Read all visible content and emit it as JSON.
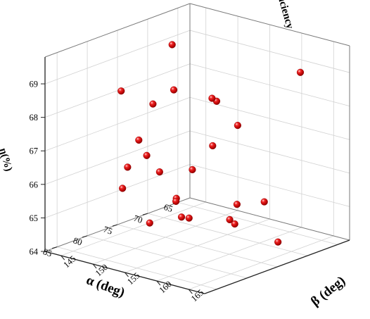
{
  "chart_data": {
    "type": "scatter",
    "dimensions": 3,
    "x_axis": {
      "label": "α (deg)",
      "ticks": [
        "65",
        "70",
        "75",
        "80",
        "85"
      ],
      "range": [
        63,
        87
      ]
    },
    "y_axis": {
      "label": "β (deg)",
      "ticks": [
        "145",
        "150",
        "155",
        "160",
        "165"
      ],
      "range": [
        142.5,
        167.5
      ]
    },
    "z_axis": {
      "label_line1": "Total pressure efficiency",
      "label_line2": "η(%)",
      "ticks": [
        "64",
        "65",
        "66",
        "67",
        "68",
        "69"
      ],
      "range": [
        64,
        69.8
      ]
    },
    "grid": true,
    "marker_color": "#e01010",
    "points": [
      {
        "x": 77.6,
        "y": 150.0,
        "z": 64.6
      },
      {
        "x": 72.9,
        "y": 163.5,
        "z": 65.6
      },
      {
        "x": 80.7,
        "y": 166.6,
        "z": 66.2
      },
      {
        "x": 81.6,
        "y": 167.1,
        "z": 65.7
      },
      {
        "x": 73.7,
        "y": 166.4,
        "z": 64.6
      },
      {
        "x": 81.5,
        "y": 157.8,
        "z": 65.9
      },
      {
        "x": 64.6,
        "y": 161.3,
        "z": 68.8
      },
      {
        "x": 73.2,
        "y": 155.7,
        "z": 66.9
      },
      {
        "x": 80.6,
        "y": 159.0,
        "z": 65.4
      },
      {
        "x": 69.6,
        "y": 152.2,
        "z": 67.9
      },
      {
        "x": 78.2,
        "y": 163.1,
        "z": 65.4
      },
      {
        "x": 64.4,
        "y": 151.3,
        "z": 66.7
      },
      {
        "x": 83.8,
        "y": 152.4,
        "z": 66.8
      },
      {
        "x": 76.7,
        "y": 150.7,
        "z": 66.1
      },
      {
        "x": 81.2,
        "y": 151.7,
        "z": 67.4
      },
      {
        "x": 74.8,
        "y": 143.1,
        "z": 65.1
      },
      {
        "x": 70.6,
        "y": 146.9,
        "z": 69.3
      },
      {
        "x": 83.8,
        "y": 155.4,
        "z": 67.3
      },
      {
        "x": 79.1,
        "y": 158.1,
        "z": 66.7
      },
      {
        "x": 79.1,
        "y": 156.4,
        "z": 65.2
      },
      {
        "x": 77.2,
        "y": 153.8,
        "z": 65.5
      },
      {
        "x": 77.8,
        "y": 150.7,
        "z": 68.2
      },
      {
        "x": 80.1,
        "y": 147.9,
        "z": 68.6
      },
      {
        "x": 71.8,
        "y": 155.0,
        "z": 68.1
      },
      {
        "x": 75.3,
        "y": 151.6,
        "z": 68.5
      }
    ]
  }
}
